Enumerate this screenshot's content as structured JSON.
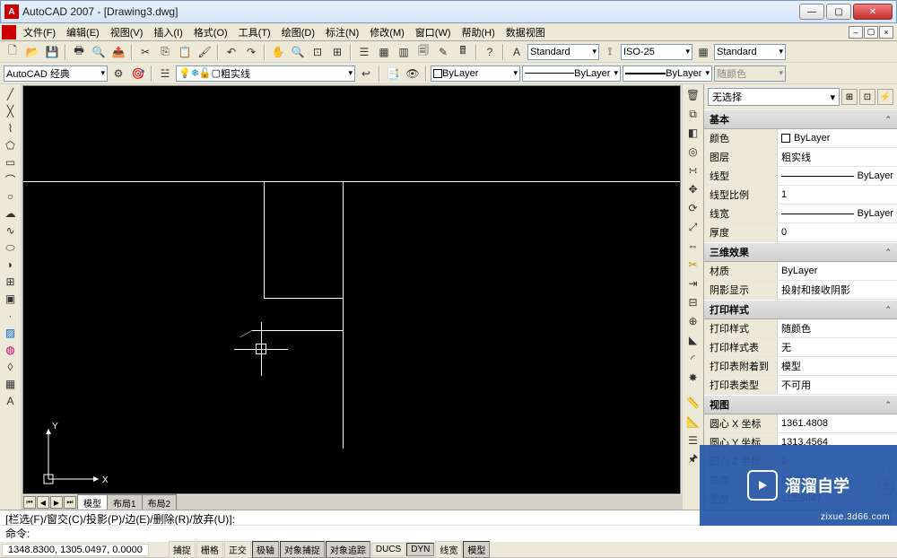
{
  "window": {
    "title": "AutoCAD 2007 - [Drawing3.dwg]",
    "min": "—",
    "max": "▢",
    "close": "✕"
  },
  "menu": {
    "items": [
      "文件(F)",
      "编辑(E)",
      "视图(V)",
      "插入(I)",
      "格式(O)",
      "工具(T)",
      "绘图(D)",
      "标注(N)",
      "修改(M)",
      "窗口(W)",
      "帮助(H)",
      "数据视图"
    ]
  },
  "toolbar1": {
    "combo_style1": "Standard",
    "combo_style2": "ISO-25",
    "combo_style3": "Standard"
  },
  "toolbar2": {
    "workspace": "AutoCAD 经典",
    "layer_name": "粗实线",
    "color": "ByLayer",
    "linetype": "ByLayer",
    "lineweight": "ByLayer",
    "plotstyle": "随颜色"
  },
  "tabs": {
    "items": [
      "模型",
      "布局1",
      "布局2"
    ]
  },
  "props": {
    "selection": "无选择",
    "sections": {
      "basic": {
        "title": "基本",
        "rows": [
          {
            "k": "颜色",
            "v": "ByLayer",
            "swatch": true
          },
          {
            "k": "图层",
            "v": "粗实线"
          },
          {
            "k": "线型",
            "v": "ByLayer",
            "line": true
          },
          {
            "k": "线型比例",
            "v": "1"
          },
          {
            "k": "线宽",
            "v": "ByLayer",
            "line": true
          },
          {
            "k": "厚度",
            "v": "0"
          }
        ]
      },
      "three_d": {
        "title": "三维效果",
        "rows": [
          {
            "k": "材质",
            "v": "ByLayer"
          },
          {
            "k": "阴影显示",
            "v": "投射和接收阴影"
          }
        ]
      },
      "print": {
        "title": "打印样式",
        "rows": [
          {
            "k": "打印样式",
            "v": "随颜色"
          },
          {
            "k": "打印样式表",
            "v": "无"
          },
          {
            "k": "打印表附着到",
            "v": "模型"
          },
          {
            "k": "打印表类型",
            "v": "不可用"
          }
        ]
      },
      "view": {
        "title": "视图",
        "rows": [
          {
            "k": "圆心 X 坐标",
            "v": "1361.4808"
          },
          {
            "k": "圆心 Y 坐标",
            "v": "1313.4564"
          },
          {
            "k": "圆心 Z 坐标",
            "v": "0"
          },
          {
            "k": "高度",
            "v": "52.8644"
          },
          {
            "k": "宽度",
            "v": "112.5847"
          }
        ]
      }
    }
  },
  "command": {
    "history": "[栏选(F)/窗交(C)/投影(P)/边(E)/删除(R)/放弃(U)]:",
    "prompt": "命令:"
  },
  "status": {
    "coords": "1348.8300, 1305.0497, 0.0000",
    "buttons": [
      "捕捉",
      "栅格",
      "正交",
      "极轴",
      "对象捕捉",
      "对象追踪",
      "DUCS",
      "DYN",
      "线宽",
      "模型"
    ]
  },
  "watermark": {
    "text": "溜溜自学",
    "url": "zixue.3d66.com"
  },
  "viewport": {
    "bg": "#000000",
    "line_color": "#ffffff",
    "ucs": {
      "x_label": "X",
      "y_label": "Y"
    }
  }
}
